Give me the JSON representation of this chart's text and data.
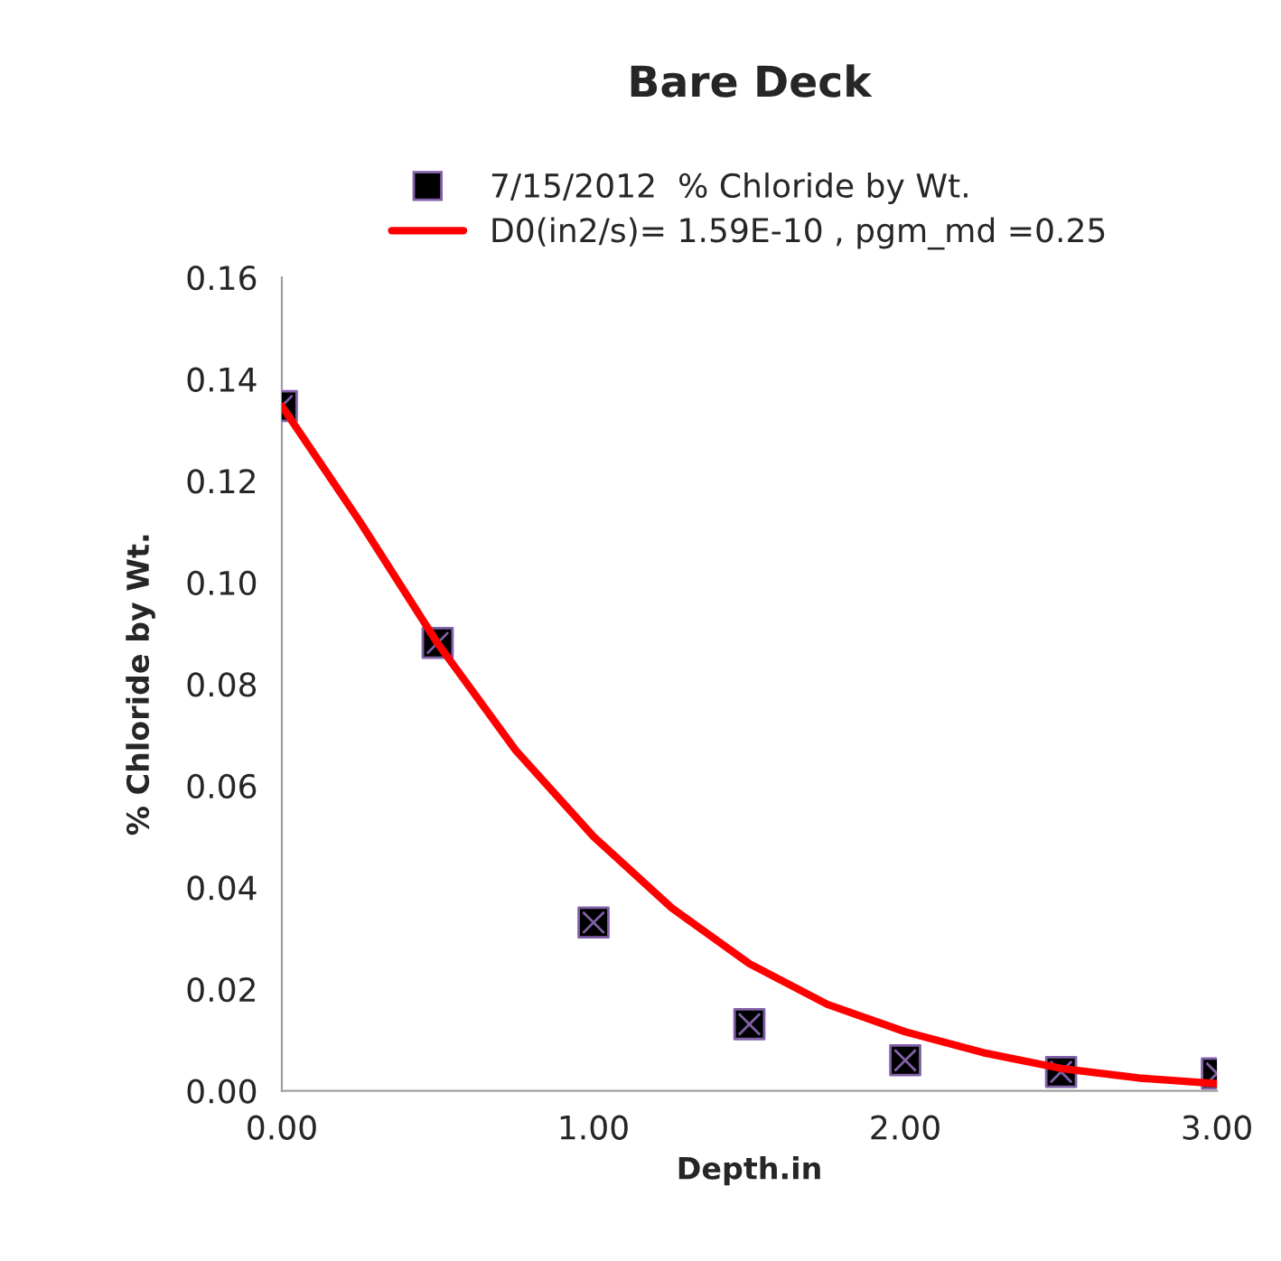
{
  "chart_data": {
    "type": "scatter",
    "title": "Bare Deck",
    "xlabel": "Depth.in",
    "ylabel": "% Chloride by Wt.",
    "xlim": [
      0,
      3
    ],
    "xticks": [
      {
        "value": 0,
        "label": "0.00"
      },
      {
        "value": 1,
        "label": "1.00"
      },
      {
        "value": 2,
        "label": "2.00"
      },
      {
        "value": 3,
        "label": "3.00"
      }
    ],
    "ylim": [
      0,
      0.16
    ],
    "yticks": [
      {
        "value": 0,
        "label": "0.00"
      },
      {
        "value": 0.02,
        "label": "0.02"
      },
      {
        "value": 0.04,
        "label": "0.04"
      },
      {
        "value": 0.06,
        "label": "0.06"
      },
      {
        "value": 0.08,
        "label": "0.08"
      },
      {
        "value": 0.1,
        "label": "0.10"
      },
      {
        "value": 0.12,
        "label": "0.12"
      },
      {
        "value": 0.14,
        "label": "0.14"
      },
      {
        "value": 0.16,
        "label": "0.16"
      }
    ],
    "grid": false,
    "legend": "top",
    "series": [
      {
        "name": "7/15/2012  % Chloride by Wt.",
        "marker": "square",
        "color": "#000000",
        "x": [
          0,
          0.5,
          1.0,
          1.5,
          2.0,
          2.5,
          3.0
        ],
        "values": [
          0.1347,
          0.0881,
          0.0331,
          0.0131,
          0.006,
          0.0037,
          0.0034
        ]
      },
      {
        "name": "D0(in2/s)= 1.59E-10 , pgm_md =0.25",
        "type": "line",
        "marker": "none",
        "line_style": "solid",
        "color": "#ff0000",
        "x": [
          0,
          0.25,
          0.5,
          0.75,
          1.0,
          1.25,
          1.5,
          1.75,
          2.0,
          2.25,
          2.5,
          2.75,
          3.0
        ],
        "values": [
          0.1347,
          0.112,
          0.088,
          0.067,
          0.05,
          0.036,
          0.025,
          0.017,
          0.0116,
          0.0075,
          0.0044,
          0.0025,
          0.0014
        ]
      }
    ]
  }
}
